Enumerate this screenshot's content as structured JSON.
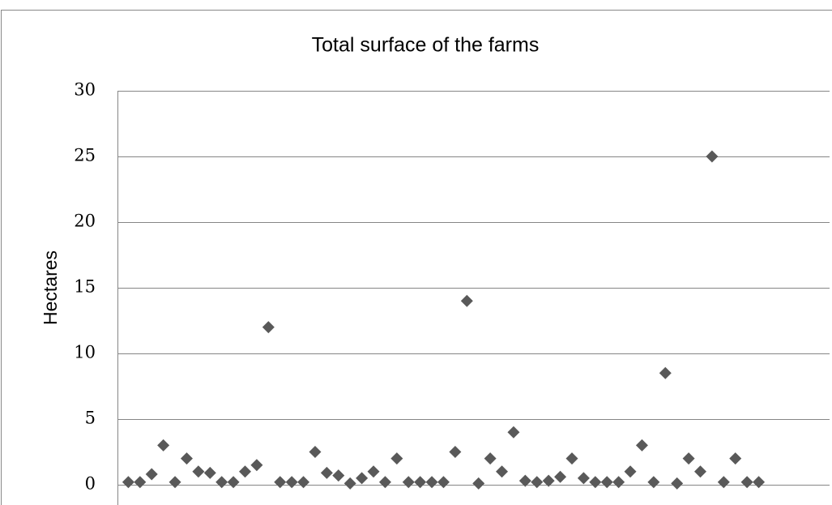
{
  "chart_data": {
    "type": "scatter",
    "title": "Total surface of the farms",
    "y_label": "Hectares",
    "marker": "diamond",
    "color": "#595959",
    "values": [
      0.2,
      0.2,
      0.8,
      3,
      0.2,
      2,
      1,
      0.9,
      0.2,
      0.2,
      1,
      1.5,
      12,
      0.2,
      0.2,
      0.2,
      2.5,
      0.9,
      0.7,
      0.1,
      0.5,
      1,
      0.2,
      2,
      0.2,
      0.2,
      0.2,
      0.2,
      2.5,
      14,
      0.1,
      2,
      1,
      4,
      0.3,
      0.2,
      0.3,
      0.6,
      2,
      0.5,
      0.2,
      0.2,
      0.2,
      1,
      3,
      0.2,
      8.5,
      0.1,
      2,
      1,
      25,
      0.2,
      2,
      0.2,
      0.2
    ],
    "ylim": [
      0,
      30
    ],
    "yticks": [
      0,
      5,
      10,
      15,
      20,
      25,
      30
    ],
    "grid": true
  }
}
